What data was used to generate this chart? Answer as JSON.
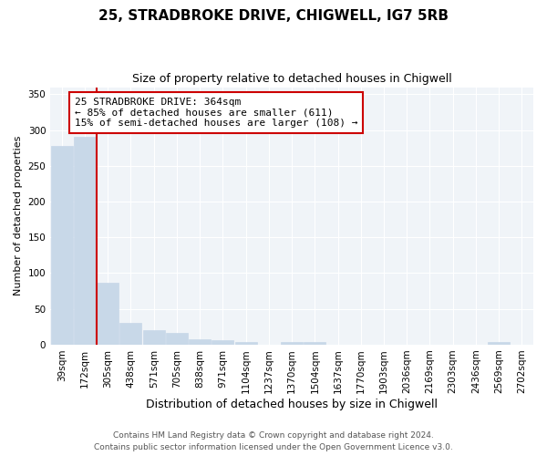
{
  "title1": "25, STRADBROKE DRIVE, CHIGWELL, IG7 5RB",
  "title2": "Size of property relative to detached houses in Chigwell",
  "xlabel": "Distribution of detached houses by size in Chigwell",
  "ylabel": "Number of detached properties",
  "bin_labels": [
    "39sqm",
    "172sqm",
    "305sqm",
    "438sqm",
    "571sqm",
    "705sqm",
    "838sqm",
    "971sqm",
    "1104sqm",
    "1237sqm",
    "1370sqm",
    "1504sqm",
    "1637sqm",
    "1770sqm",
    "1903sqm",
    "2036sqm",
    "2169sqm",
    "2303sqm",
    "2436sqm",
    "2569sqm",
    "2702sqm"
  ],
  "bar_heights": [
    278,
    290,
    87,
    30,
    20,
    17,
    8,
    6,
    3,
    0,
    4,
    4,
    0,
    0,
    0,
    0,
    0,
    0,
    0,
    3,
    0
  ],
  "bar_color": "#c8d8e8",
  "bar_edgecolor": "#c8d8e8",
  "vline_color": "#cc0000",
  "vline_position": 2,
  "ylim": [
    0,
    360
  ],
  "yticks": [
    0,
    50,
    100,
    150,
    200,
    250,
    300,
    350
  ],
  "annotation_title": "25 STRADBROKE DRIVE: 364sqm",
  "annotation_line1": "← 85% of detached houses are smaller (611)",
  "annotation_line2": "15% of semi-detached houses are larger (108) →",
  "annotation_box_edgecolor": "#cc0000",
  "footer1": "Contains HM Land Registry data © Crown copyright and database right 2024.",
  "footer2": "Contains public sector information licensed under the Open Government Licence v3.0.",
  "bg_color": "#ffffff",
  "plot_bg_color": "#f0f4f8",
  "grid_color": "#ffffff",
  "title1_fontsize": 11,
  "title2_fontsize": 9,
  "ylabel_fontsize": 8,
  "xlabel_fontsize": 9,
  "tick_fontsize": 7.5,
  "annotation_fontsize": 8,
  "footer_fontsize": 6.5
}
